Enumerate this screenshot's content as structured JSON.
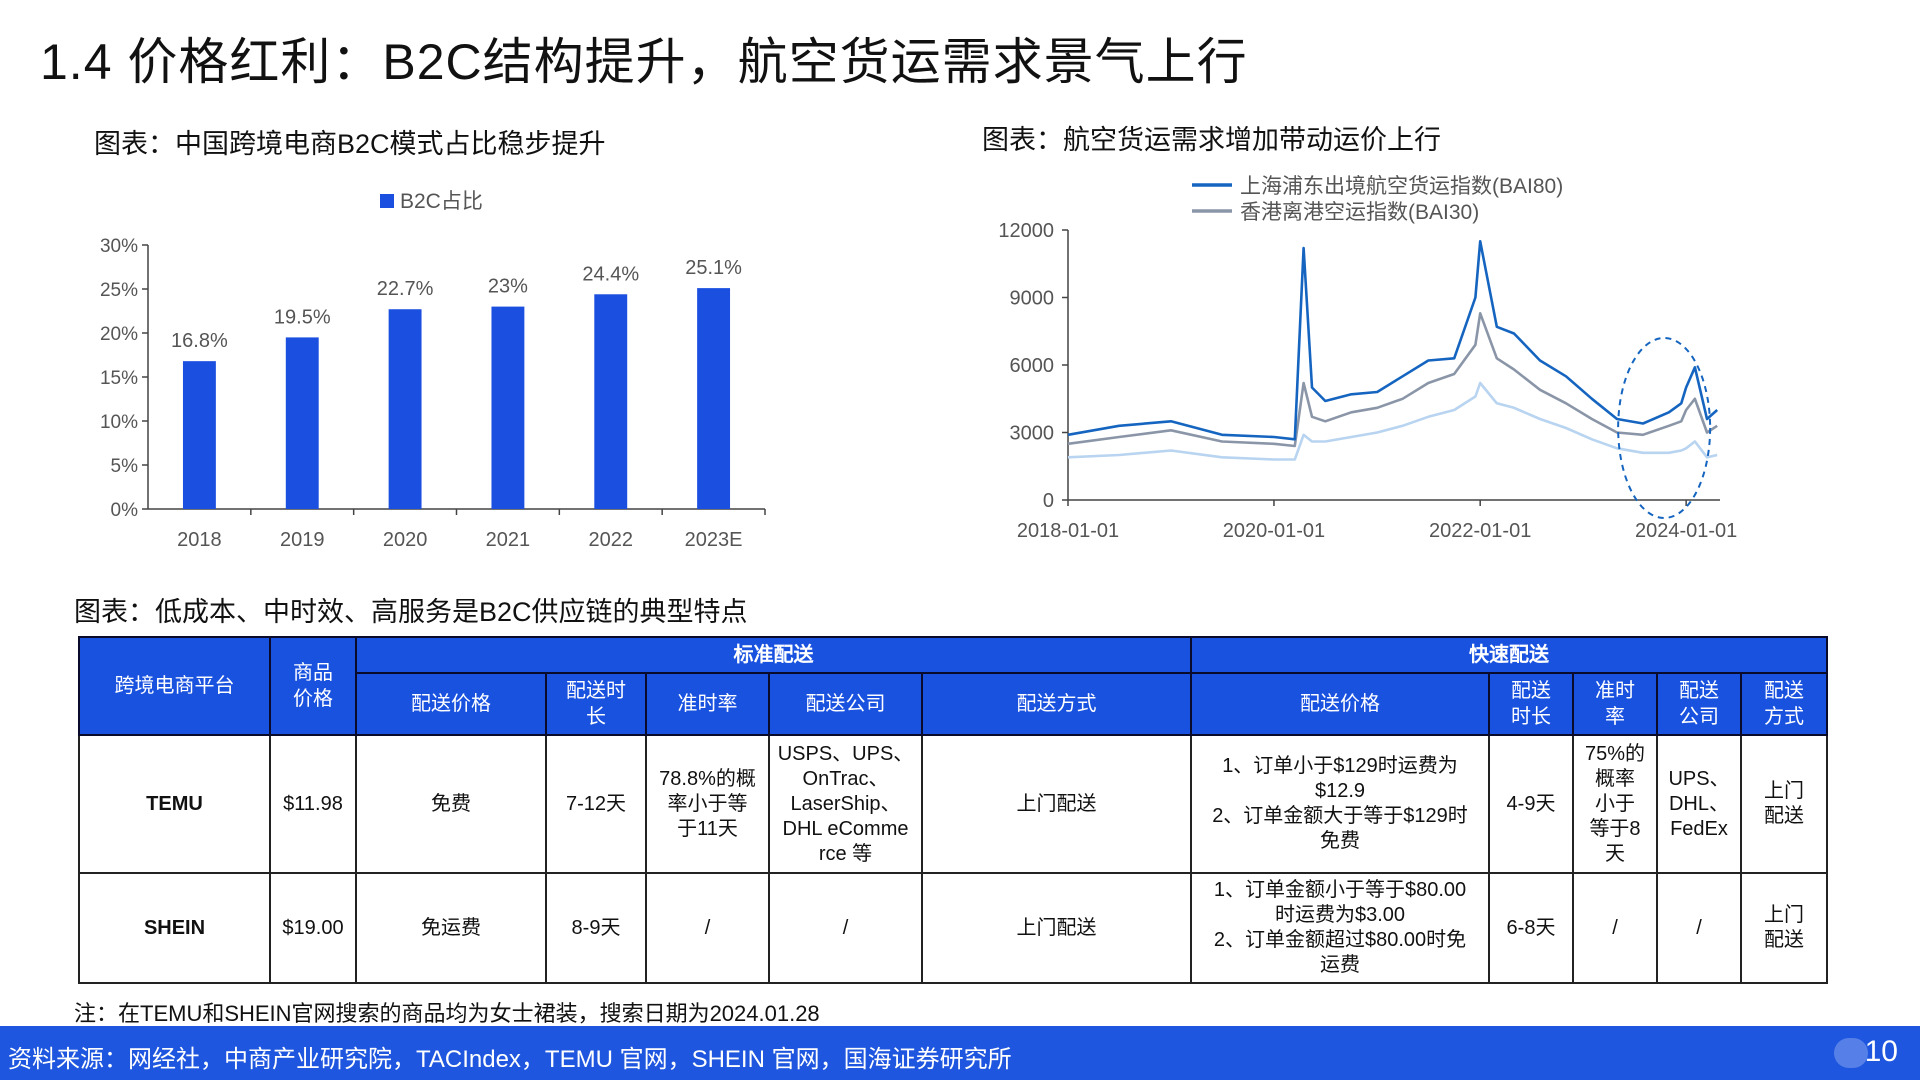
{
  "title": "1.4 价格红利：B2C结构提升，航空货运需求景气上行",
  "left_caption": "图表：中国跨境电商B2C模式占比稳步提升",
  "right_caption": "图表：航空货运需求增加带动运价上行",
  "table_caption": "图表：低成本、中时效、高服务是B2C供应链的典型特点",
  "chart_data": [
    {
      "type": "bar",
      "categories": [
        "2018",
        "2019",
        "2020",
        "2021",
        "2022",
        "2023E"
      ],
      "series": [
        {
          "name": "B2C占比",
          "values": [
            16.8,
            19.5,
            22.7,
            23,
            24.4,
            25.1
          ]
        }
      ],
      "value_labels": [
        "16.8%",
        "19.5%",
        "22.7%",
        "23%",
        "24.4%",
        "25.1%"
      ],
      "y_ticks": [
        "0%",
        "5%",
        "10%",
        "15%",
        "20%",
        "25%",
        "30%"
      ],
      "ylim": [
        0,
        30
      ],
      "legend_position": "top",
      "color": "#1a4fe0"
    },
    {
      "type": "line",
      "x_ticks": [
        "2018-01-01",
        "2020-01-01",
        "2022-01-01",
        "2024-01-01"
      ],
      "y_ticks": [
        "0",
        "3000",
        "6000",
        "9000",
        "12000"
      ],
      "ylim": [
        0,
        12000
      ],
      "xlim": [
        "2018-01-01",
        "2024-04-30"
      ],
      "legend_position": "top",
      "highlight": "dashed circle around early 2024",
      "series": [
        {
          "name": "上海浦东出境航空货运指数(BAI80)",
          "color": "#1565c0",
          "x": [
            "2018-01-01",
            "2018-07-01",
            "2019-01-01",
            "2019-07-01",
            "2020-01-01",
            "2020-03-15",
            "2020-04-15",
            "2020-05-15",
            "2020-07-01",
            "2020-10-01",
            "2021-01-01",
            "2021-04-01",
            "2021-07-01",
            "2021-10-01",
            "2021-12-15",
            "2022-01-01",
            "2022-03-01",
            "2022-05-01",
            "2022-08-01",
            "2022-11-01",
            "2023-02-01",
            "2023-05-01",
            "2023-08-01",
            "2023-11-01",
            "2023-12-15",
            "2024-01-01",
            "2024-02-01",
            "2024-03-15",
            "2024-04-20"
          ],
          "values": [
            2900,
            3300,
            3500,
            2900,
            2800,
            2700,
            11200,
            5000,
            4400,
            4700,
            4800,
            5500,
            6200,
            6300,
            9000,
            11500,
            7700,
            7400,
            6200,
            5500,
            4500,
            3600,
            3400,
            3900,
            4300,
            5000,
            5900,
            3600,
            4000
          ]
        },
        {
          "name": "香港离港空运指数(BAI30)",
          "color": "#8a96a8",
          "x": [
            "2018-01-01",
            "2018-07-01",
            "2019-01-01",
            "2019-07-01",
            "2020-01-01",
            "2020-03-15",
            "2020-04-15",
            "2020-05-15",
            "2020-07-01",
            "2020-10-01",
            "2021-01-01",
            "2021-04-01",
            "2021-07-01",
            "2021-10-01",
            "2021-12-15",
            "2022-01-01",
            "2022-03-01",
            "2022-05-01",
            "2022-08-01",
            "2022-11-01",
            "2023-02-01",
            "2023-05-01",
            "2023-08-01",
            "2023-11-01",
            "2023-12-15",
            "2024-01-01",
            "2024-02-01",
            "2024-03-15",
            "2024-04-20"
          ],
          "values": [
            2500,
            2800,
            3100,
            2600,
            2500,
            2400,
            5200,
            3700,
            3500,
            3900,
            4100,
            4500,
            5200,
            5600,
            6900,
            8300,
            6300,
            5800,
            4900,
            4300,
            3600,
            3000,
            2900,
            3300,
            3500,
            4000,
            4500,
            3000,
            3300
          ]
        },
        {
          "name": "",
          "color": "#b8d4f0",
          "x": [
            "2018-01-01",
            "2018-07-01",
            "2019-01-01",
            "2019-07-01",
            "2020-01-01",
            "2020-03-15",
            "2020-04-15",
            "2020-05-15",
            "2020-07-01",
            "2020-10-01",
            "2021-01-01",
            "2021-04-01",
            "2021-07-01",
            "2021-10-01",
            "2021-12-15",
            "2022-01-01",
            "2022-03-01",
            "2022-05-01",
            "2022-08-01",
            "2022-11-01",
            "2023-02-01",
            "2023-05-01",
            "2023-08-01",
            "2023-11-01",
            "2023-12-15",
            "2024-01-01",
            "2024-02-01",
            "2024-03-15",
            "2024-04-20"
          ],
          "values": [
            1900,
            2000,
            2200,
            1900,
            1800,
            1800,
            2900,
            2600,
            2600,
            2800,
            3000,
            3300,
            3700,
            4000,
            4600,
            5200,
            4300,
            4100,
            3600,
            3200,
            2700,
            2300,
            2100,
            2100,
            2200,
            2300,
            2600,
            1900,
            2000
          ]
        }
      ]
    }
  ],
  "table": {
    "header_platform": "跨境电商平台",
    "header_price": "商品\n价格",
    "group_standard": "标准配送",
    "group_express": "快速配送",
    "sub_standard": [
      "配送价格",
      "配送时\n长",
      "准时率",
      "配送公司",
      "配送方式"
    ],
    "sub_express": [
      "配送价格",
      "配送\n时长",
      "准时\n率",
      "配送\n公司",
      "配送\n方式"
    ],
    "rows": [
      {
        "platform": "TEMU",
        "price": "$11.98",
        "std": [
          "免费",
          "7-12天",
          "78.8%的概\n率小于等\n于11天",
          "USPS、UPS、\nOnTrac、\nLaserShip、\nDHL eComme\nrce 等",
          "上门配送"
        ],
        "exp": [
          "1、订单小于$129时运费为\n$12.9\n2、订单金额大于等于$129时\n免费",
          "4-9天",
          "75%的\n概率\n小于\n等于8\n天",
          "UPS、\nDHL、\nFedEx",
          "上门\n配送"
        ]
      },
      {
        "platform": "SHEIN",
        "price": "$19.00",
        "std": [
          "免运费",
          "8-9天",
          "/",
          "/",
          "上门配送"
        ],
        "exp": [
          "1、订单金额小于等于$80.00\n时运费为$3.00\n2、订单金额超过$80.00时免\n运费",
          "6-8天",
          "/",
          "/",
          "上门\n配送"
        ]
      }
    ]
  },
  "note": "注：在TEMU和SHEIN官网搜索的商品均为女士裙装，搜索日期为2024.01.28",
  "footer_source": "资料来源：网经社，中商产业研究院，TACIndex，TEMU 官网，SHEIN 官网，国海证券研究所",
  "page_number": "10"
}
